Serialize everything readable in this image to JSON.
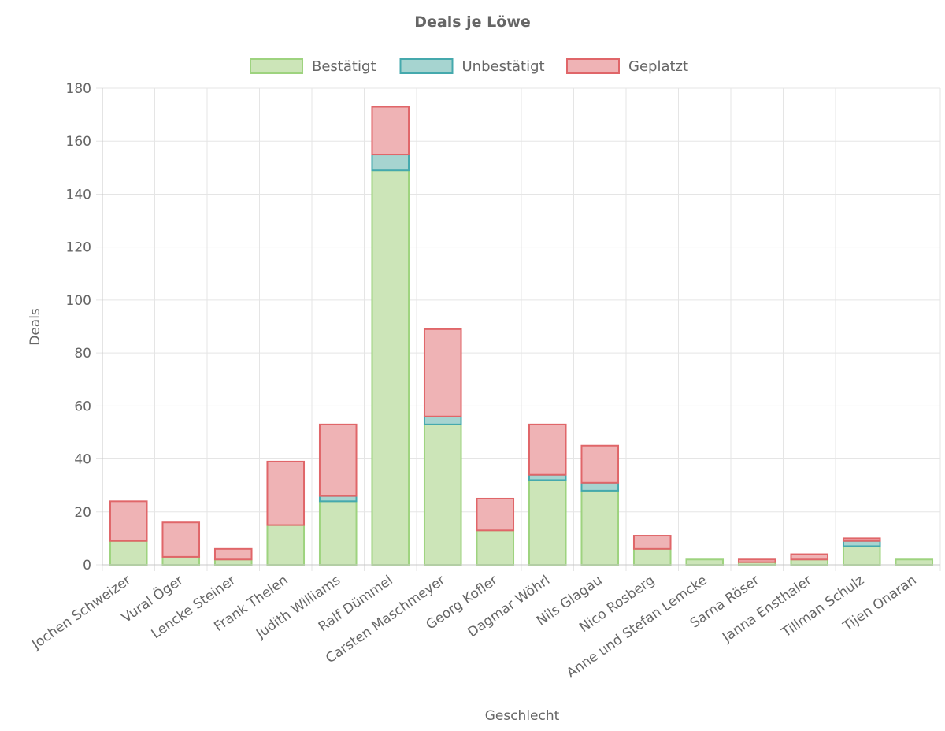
{
  "chart_data": {
    "type": "bar",
    "stacked": true,
    "title": "Deals je Löwe",
    "xlabel": "Geschlecht",
    "ylabel": "Deals",
    "ylim": [
      0,
      180
    ],
    "yticks": [
      0,
      20,
      40,
      60,
      80,
      100,
      120,
      140,
      160,
      180
    ],
    "legend_position": "top",
    "grid": true,
    "categories": [
      "Jochen Schweizer",
      "Vural Öger",
      "Lencke Steiner",
      "Frank Thelen",
      "Judith Williams",
      "Ralf Dümmel",
      "Carsten Maschmeyer",
      "Georg Kofler",
      "Dagmar Wöhrl",
      "Nils Glagau",
      "Nico Rosberg",
      "Anne und Stefan Lemcke",
      "Sarna Röser",
      "Janna Ensthaler",
      "Tillman Schulz",
      "Tijen Onaran"
    ],
    "series": [
      {
        "name": "Bestätigt",
        "fill": "#cce5b8",
        "stroke": "#9ed37f",
        "values": [
          9,
          3,
          2,
          15,
          24,
          149,
          53,
          13,
          32,
          28,
          6,
          2,
          1,
          2,
          7,
          2
        ]
      },
      {
        "name": "Unbestätigt",
        "fill": "#a6d4d0",
        "stroke": "#45a9ad",
        "values": [
          0,
          0,
          0,
          0,
          2,
          6,
          3,
          0,
          2,
          3,
          0,
          0,
          0,
          0,
          2,
          0
        ]
      },
      {
        "name": "Geplatzt",
        "fill": "#efb3b5",
        "stroke": "#e06669",
        "values": [
          15,
          13,
          4,
          24,
          27,
          18,
          33,
          12,
          19,
          14,
          5,
          0,
          1,
          2,
          1,
          0
        ]
      }
    ]
  }
}
